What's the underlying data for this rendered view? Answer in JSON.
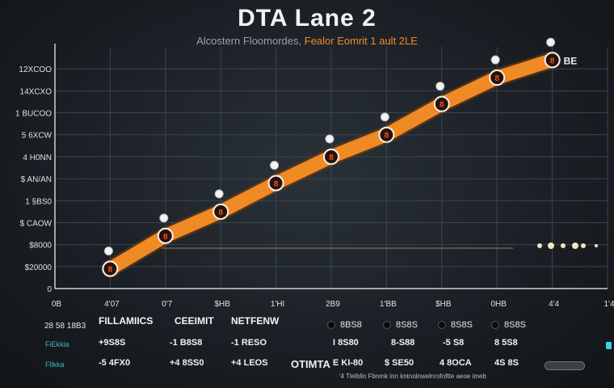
{
  "chart_data": {
    "type": "line",
    "title": "DTA Lane 2",
    "subtitle_a": "Alcostern Floomordes,",
    "subtitle_b": "Fealor Eomrit 1 ault 2LE",
    "y_tick_labels": [
      "0",
      "$20000",
      "$8000",
      "$ CAOW",
      "1 §BS0",
      "$ AN/AN",
      "4 H0NN",
      "5 6XCW",
      "1 BUCOO",
      "14XCXO",
      "12XCOO"
    ],
    "x_tick_labels": [
      "0B",
      "4'07",
      "0'7",
      "$HB",
      "1'HI",
      "2B9",
      "1'BB",
      "$HB",
      "0HB",
      "4'4",
      "1'4"
    ],
    "x": [
      1,
      2,
      3,
      4,
      5,
      6,
      7,
      8,
      9
    ],
    "values": [
      0.9,
      2.4,
      3.5,
      4.8,
      6.0,
      7.0,
      8.4,
      9.6,
      10.4
    ],
    "point_labels": [
      "8",
      "8",
      "8",
      "8",
      "8",
      "8",
      "8",
      "8",
      "8"
    ],
    "ylim": [
      0,
      11
    ],
    "xlim": [
      0,
      10
    ],
    "line_color": "#f08a24",
    "grid": true,
    "end_label": "BE"
  },
  "table": {
    "row0": [
      "28 58 18B3",
      "FILLAMIICS",
      "CEEIMIT",
      "NETFENW"
    ],
    "row0_right": [
      "8BS8",
      "8S8S",
      "8S8S",
      "8S8S"
    ],
    "row1_label": "FiEkkia",
    "row1": [
      "+9S8S",
      "-1 B8S8",
      "-1 RESO"
    ],
    "row1_right": [
      "I 8S80",
      "8-S88",
      "-5 S8",
      "8 5S8"
    ],
    "row2_label": "Fllkka",
    "row2": [
      "-5 4FX0",
      "+4 8SS0",
      "+4 LEOS",
      "OTIMTA"
    ],
    "row2_right": [
      "E KI-80",
      "$ SE50",
      "4 8OCA",
      "4S 8S"
    ],
    "footnote": "'4 Tlelbllo Fbnmk lnn kntnolnwelnrofoftte aeoe imeb"
  }
}
